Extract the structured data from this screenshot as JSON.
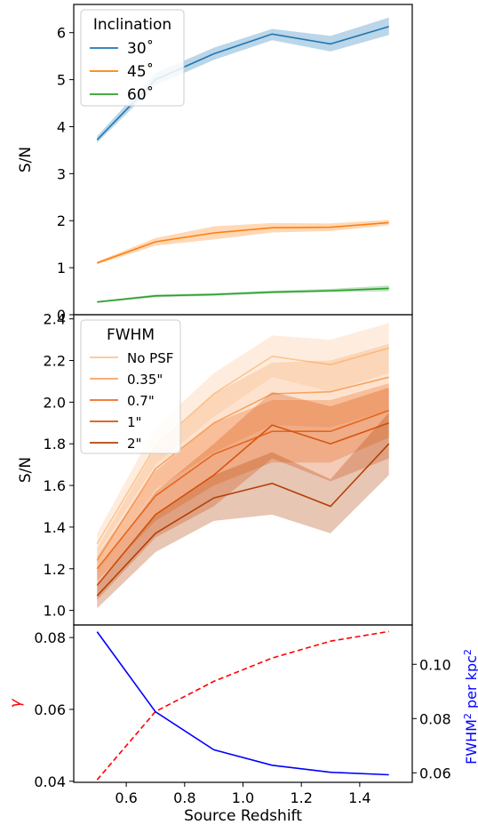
{
  "chart_data": [
    {
      "type": "line",
      "ylabel": "S/N",
      "ylim": [
        0,
        6.6
      ],
      "xlim": [
        0.42,
        1.58
      ],
      "yticks": [
        0,
        1,
        2,
        3,
        4,
        5,
        6
      ],
      "legend": {
        "title": "Inclination",
        "placement": "top-left"
      },
      "x": [
        0.5,
        0.7,
        0.9,
        1.1,
        1.3,
        1.5
      ],
      "series": [
        {
          "name": "30$^\\circ$",
          "display": "30˚",
          "color": "#1f77b4",
          "values": [
            3.72,
            5.0,
            5.55,
            5.97,
            5.76,
            6.13
          ],
          "lower": [
            3.66,
            4.88,
            5.42,
            5.84,
            5.6,
            5.95
          ],
          "upper": [
            3.8,
            5.14,
            5.68,
            6.08,
            5.93,
            6.32
          ]
        },
        {
          "name": "45$^\\circ$",
          "display": "45˚",
          "color": "#ff7f0e",
          "values": [
            1.1,
            1.55,
            1.74,
            1.85,
            1.86,
            1.96
          ],
          "lower": [
            1.07,
            1.47,
            1.6,
            1.75,
            1.78,
            1.9
          ],
          "upper": [
            1.13,
            1.63,
            1.88,
            1.95,
            1.94,
            2.02
          ]
        },
        {
          "name": "60$^\\circ$",
          "display": "60˚",
          "color": "#2ca02c",
          "values": [
            0.27,
            0.4,
            0.43,
            0.48,
            0.51,
            0.56
          ],
          "lower": [
            0.25,
            0.37,
            0.4,
            0.45,
            0.48,
            0.5
          ],
          "upper": [
            0.29,
            0.43,
            0.46,
            0.51,
            0.55,
            0.62
          ]
        }
      ]
    },
    {
      "type": "line",
      "ylabel": "S/N",
      "ylim": [
        0.93,
        2.42
      ],
      "xlim": [
        0.42,
        1.58
      ],
      "yticks": [
        1.0,
        1.2,
        1.4,
        1.6,
        1.8,
        2.0,
        2.2,
        2.4
      ],
      "legend": {
        "title": "FWHM",
        "placement": "top-left"
      },
      "x": [
        0.5,
        0.7,
        0.9,
        1.1,
        1.3,
        1.5
      ],
      "series": [
        {
          "name": "No PSF",
          "color": "#fbc591",
          "values": [
            1.32,
            1.79,
            2.04,
            2.22,
            2.18,
            2.26
          ],
          "lower": [
            1.27,
            1.7,
            1.93,
            2.12,
            2.05,
            2.14
          ],
          "upper": [
            1.37,
            1.88,
            2.14,
            2.32,
            2.3,
            2.38
          ]
        },
        {
          "name": "0.35\"",
          "color": "#f8a360",
          "values": [
            1.24,
            1.68,
            1.9,
            2.04,
            2.05,
            2.12
          ],
          "lower": [
            1.18,
            1.58,
            1.76,
            1.89,
            1.88,
            1.96
          ],
          "upper": [
            1.3,
            1.78,
            2.04,
            2.19,
            2.2,
            2.28
          ]
        },
        {
          "name": "0.7\"",
          "color": "#ef6d22",
          "values": [
            1.2,
            1.55,
            1.75,
            1.86,
            1.86,
            1.96
          ],
          "lower": [
            1.14,
            1.43,
            1.6,
            1.71,
            1.71,
            1.83
          ],
          "upper": [
            1.26,
            1.67,
            1.9,
            2.01,
            2.01,
            2.09
          ]
        },
        {
          "name": "1\"",
          "color": "#d8540c",
          "values": [
            1.12,
            1.46,
            1.65,
            1.89,
            1.8,
            1.9
          ],
          "lower": [
            1.05,
            1.35,
            1.5,
            1.73,
            1.62,
            1.73
          ],
          "upper": [
            1.19,
            1.57,
            1.8,
            2.05,
            1.98,
            2.07
          ]
        },
        {
          "name": "2\"",
          "color": "#b24207",
          "values": [
            1.07,
            1.37,
            1.54,
            1.61,
            1.5,
            1.8
          ],
          "lower": [
            1.01,
            1.28,
            1.43,
            1.46,
            1.37,
            1.65
          ],
          "upper": [
            1.13,
            1.46,
            1.65,
            1.76,
            1.63,
            1.95
          ]
        }
      ]
    },
    {
      "type": "line",
      "xlabel": "Source Redshift",
      "ylabel": "γ",
      "ylabel_right": "FWHM² per kpc²",
      "ylabel_right_main": "FWHM",
      "ylabel_right_sup": "2",
      "ylabel_right_mid": " per kpc",
      "ylabel_right_sup2": "2",
      "ylim": [
        0.0397,
        0.0835
      ],
      "ylim_right": [
        0.0565,
        0.1145
      ],
      "xlim": [
        0.42,
        1.58
      ],
      "xticks": [
        0.6,
        0.8,
        1.0,
        1.2,
        1.4
      ],
      "yticks": [
        0.04,
        0.06,
        0.08
      ],
      "yticks_right": [
        0.06,
        0.08,
        0.1
      ],
      "x": [
        0.5,
        0.7,
        0.9,
        1.1,
        1.3,
        1.5
      ],
      "series": [
        {
          "name": "γ",
          "axis": "left",
          "color": "#ff0000",
          "style": "dashed",
          "values": [
            0.0404,
            0.0594,
            0.0678,
            0.0743,
            0.079,
            0.0817
          ]
        },
        {
          "name": "FWHM² per kpc²",
          "axis": "right",
          "color": "#0000ff",
          "style": "solid",
          "values": [
            0.112,
            0.0825,
            0.0685,
            0.0628,
            0.0602,
            0.0593
          ]
        }
      ]
    }
  ]
}
